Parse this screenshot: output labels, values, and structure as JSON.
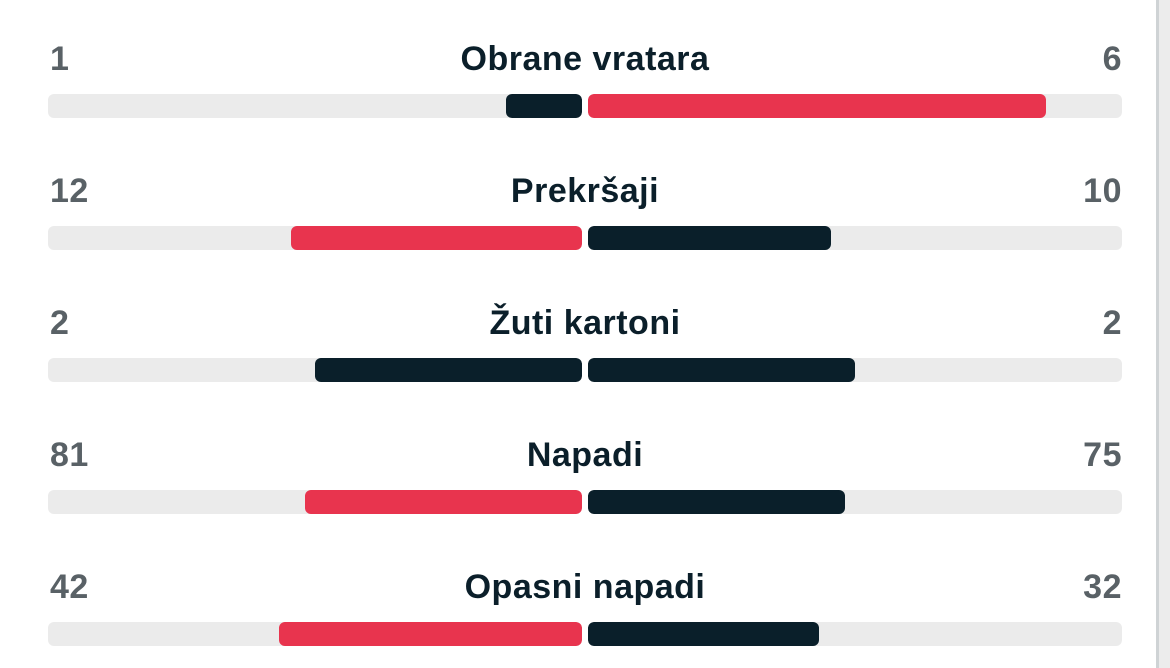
{
  "colors": {
    "leader": "#e8344e",
    "other": "#0a1f2a",
    "track": "#ebebeb"
  },
  "stats": [
    {
      "label": "Obrane vratara",
      "home": "1",
      "away": "6",
      "home_share": 0.143,
      "away_share": 0.857,
      "home_color": "#0a1f2a",
      "away_color": "#e8344e"
    },
    {
      "label": "Prekršaji",
      "home": "12",
      "away": "10",
      "home_share": 0.545,
      "away_share": 0.455,
      "home_color": "#e8344e",
      "away_color": "#0a1f2a"
    },
    {
      "label": "Žuti kartoni",
      "home": "2",
      "away": "2",
      "home_share": 0.5,
      "away_share": 0.5,
      "home_color": "#0a1f2a",
      "away_color": "#0a1f2a"
    },
    {
      "label": "Napadi",
      "home": "81",
      "away": "75",
      "home_share": 0.519,
      "away_share": 0.481,
      "home_color": "#e8344e",
      "away_color": "#0a1f2a"
    },
    {
      "label": "Opasni napadi",
      "home": "42",
      "away": "32",
      "home_share": 0.568,
      "away_share": 0.432,
      "home_color": "#e8344e",
      "away_color": "#0a1f2a"
    }
  ]
}
